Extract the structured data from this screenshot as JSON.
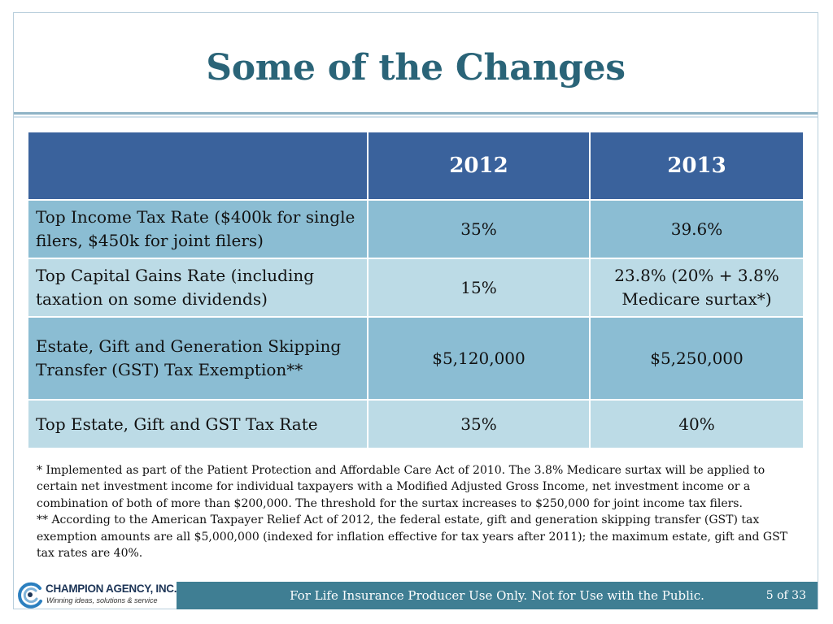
{
  "slide": {
    "title": "Some of the Changes"
  },
  "table": {
    "headers": [
      "",
      "2012",
      "2013"
    ],
    "rows": [
      {
        "label": "Top Income Tax Rate ($400k for single filers, $450k for joint filers)",
        "v2012": "35%",
        "v2013": "39.6%"
      },
      {
        "label": "Top Capital Gains Rate (including taxation on some dividends)",
        "v2012": "15%",
        "v2013": "23.8% (20% + 3.8% Medicare surtax*)"
      },
      {
        "label": "Estate, Gift and Generation Skipping Transfer (GST) Tax Exemption**",
        "v2012": "$5,120,000",
        "v2013": "$5,250,000"
      },
      {
        "label": "Top Estate, Gift and GST Tax Rate",
        "v2012": "35%",
        "v2013": "40%"
      }
    ]
  },
  "footnotes": {
    "note1": "* Implemented as part of the Patient Protection and Affordable Care Act of 2010.  The 3.8% Medicare surtax will be applied to certain net investment income for individual taxpayers with a Modified Adjusted Gross Income, net investment income or a combination of both of more than $200,000.  The threshold for the surtax increases to $250,000 for joint income tax filers.",
    "note2": "** According to the American Taxpayer Relief Act of 2012, the federal estate, gift and generation skipping transfer (GST) tax exemption amounts are all $5,000,000 (indexed for inflation effective for tax years after 2011); the maximum estate, gift and GST tax rates are 40%."
  },
  "footer": {
    "logo_name": "CHAMPION AGENCY, INC.",
    "logo_tagline": "Winning ideas, solutions & service",
    "logo_icon": "champion-swirl-icon",
    "disclaimer": "For Life Insurance Producer Use Only.  Not for Use with the Public.",
    "page": "5 of 33"
  },
  "colors": {
    "title": "#2a6478",
    "header_row": "#3a629c",
    "row_dark": "#8bbdd3",
    "row_light": "#bcdbe6",
    "footer_bar": "#3f7e93"
  }
}
